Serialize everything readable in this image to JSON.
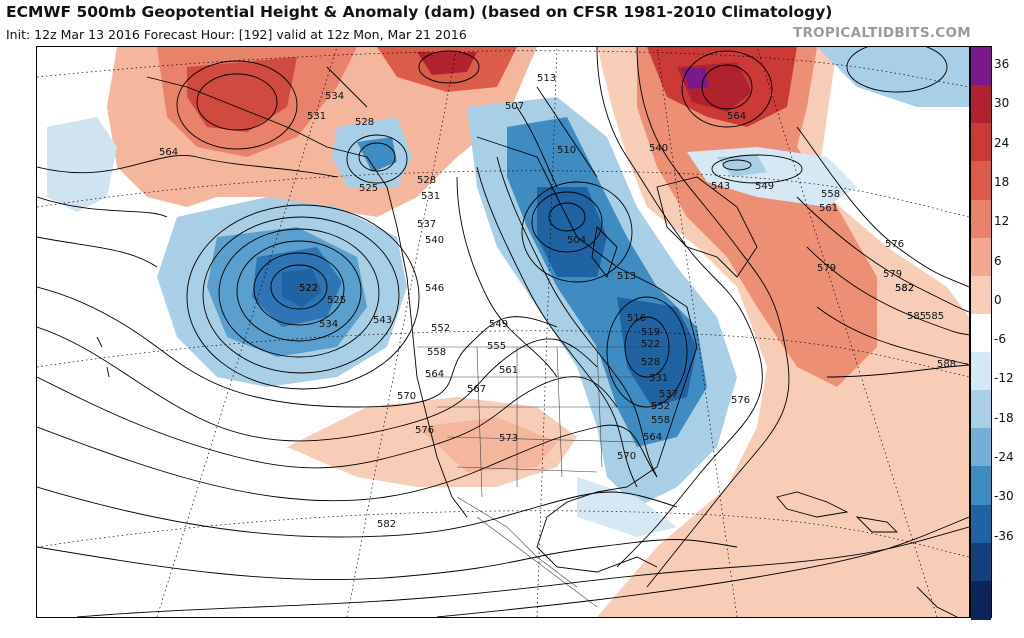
{
  "header": {
    "title": "ECMWF 500mb Geopotential Height & Anomaly (dam) (based on CFSR 1981-2010 Climatology)",
    "subtitle": "Init: 12z Mar 13 2016   Forecast Hour: [192]   valid at 12z Mon, Mar 21 2016",
    "brand": "TROPICALTIDBITS.COM"
  },
  "colorbar": {
    "ticks": [
      "36",
      "30",
      "24",
      "18",
      "12",
      "6",
      "0",
      "-6",
      "-12",
      "-18",
      "-24",
      "-30",
      "-36"
    ],
    "colors": [
      "#7a1a8a",
      "#b0232e",
      "#cc3a38",
      "#dc5c4a",
      "#e8826a",
      "#f2a98e",
      "#f8cdb8",
      "#ffffff",
      "#d6e8f3",
      "#a9cfe6",
      "#74b0d6",
      "#3f8cc2",
      "#1f63a3",
      "#11407a",
      "#0a2556"
    ]
  },
  "contour_labels": [
    {
      "text": "534"
    },
    {
      "text": "531"
    },
    {
      "text": "528"
    },
    {
      "text": "564"
    },
    {
      "text": "525"
    },
    {
      "text": "522"
    },
    {
      "text": "528"
    },
    {
      "text": "531"
    },
    {
      "text": "537"
    },
    {
      "text": "540"
    },
    {
      "text": "522"
    },
    {
      "text": "525"
    },
    {
      "text": "534"
    },
    {
      "text": "543"
    },
    {
      "text": "546"
    },
    {
      "text": "552"
    },
    {
      "text": "549"
    },
    {
      "text": "555"
    },
    {
      "text": "558"
    },
    {
      "text": "561"
    },
    {
      "text": "564"
    },
    {
      "text": "567"
    },
    {
      "text": "570"
    },
    {
      "text": "576"
    },
    {
      "text": "573"
    },
    {
      "text": "582"
    },
    {
      "text": "579"
    },
    {
      "text": "582"
    },
    {
      "text": "585"
    },
    {
      "text": "513"
    },
    {
      "text": "507"
    },
    {
      "text": "510"
    },
    {
      "text": "504"
    },
    {
      "text": "513"
    },
    {
      "text": "516"
    },
    {
      "text": "519"
    },
    {
      "text": "522"
    },
    {
      "text": "528"
    },
    {
      "text": "531"
    },
    {
      "text": "537"
    },
    {
      "text": "552"
    },
    {
      "text": "558"
    },
    {
      "text": "564"
    },
    {
      "text": "570"
    },
    {
      "text": "576"
    },
    {
      "text": "540"
    },
    {
      "text": "564"
    },
    {
      "text": "543"
    },
    {
      "text": "549"
    },
    {
      "text": "558"
    },
    {
      "text": "561"
    },
    {
      "text": "576"
    },
    {
      "text": "579"
    },
    {
      "text": "582"
    },
    {
      "text": "585"
    },
    {
      "text": "588"
    }
  ]
}
